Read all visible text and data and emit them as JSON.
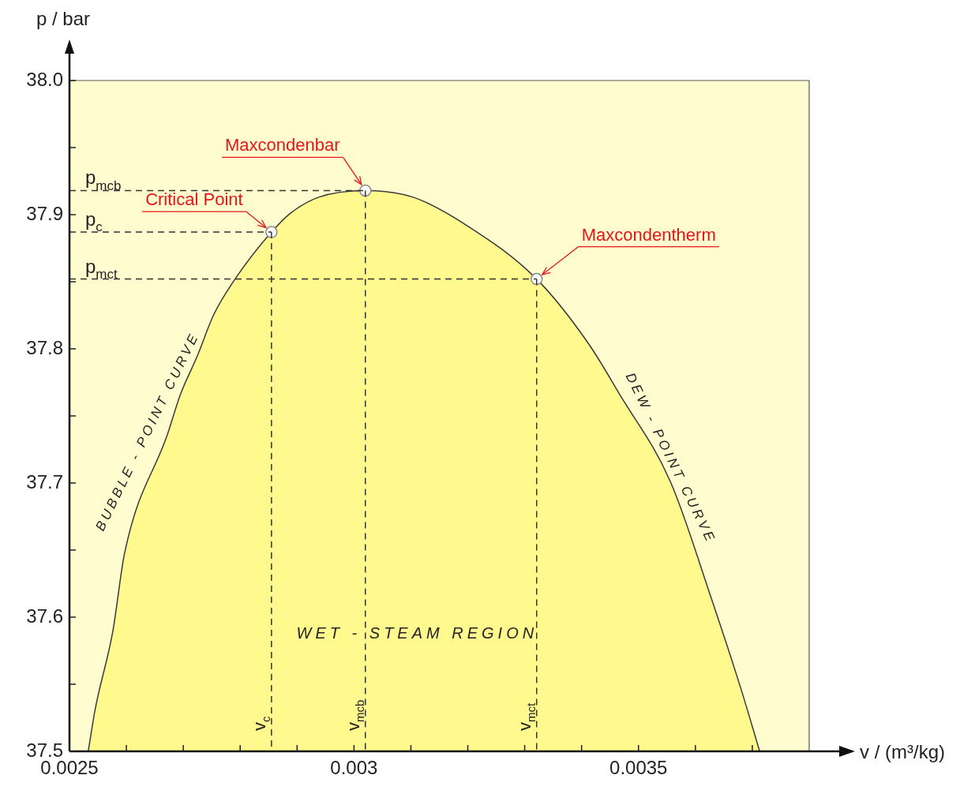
{
  "chart_data": {
    "type": "area",
    "xlabel": "v / (m³/kg)",
    "ylabel": "p / bar",
    "xlim": [
      0.0025,
      0.0038
    ],
    "ylim": [
      37.5,
      38
    ],
    "xticks": [
      0.0025,
      {
        "value": 0.0026,
        "label": null
      },
      {
        "value": 0.0027,
        "label": null
      },
      {
        "value": 0.0028,
        "label": null
      },
      {
        "value": 0.0029,
        "label": null
      },
      0.003,
      {
        "value": 0.0031,
        "label": null
      },
      {
        "value": 0.0032,
        "label": null
      },
      {
        "value": 0.0033,
        "label": null
      },
      {
        "value": 0.0034,
        "label": null
      },
      0.0035,
      {
        "value": 0.0036,
        "label": null
      },
      {
        "value": 0.0037,
        "label": null
      }
    ],
    "yticks": [
      37.5,
      {
        "value": 37.55,
        "label": null
      },
      37.6,
      {
        "value": 37.65,
        "label": null
      },
      37.7,
      {
        "value": 37.75,
        "label": null
      },
      37.8,
      {
        "value": 37.85,
        "label": null
      },
      37.9,
      {
        "value": 37.95,
        "label": null
      },
      {
        "value": 38,
        "label": "38.0"
      }
    ],
    "bands": [
      {
        "axis": "y",
        "from": 37.5,
        "to": 38,
        "color": "#fffdcf"
      }
    ],
    "series": [
      {
        "color": "#fff98e",
        "x": [
          0.002533,
          0.002545,
          0.002576,
          0.002597,
          0.002672,
          0.002695,
          0.002725,
          0.002753,
          0.002791,
          0.002855,
          0.002888,
          0.002938,
          0.00302,
          0.003104,
          0.003198,
          0.003321,
          0.003412,
          0.003467,
          0.003556,
          0.003628,
          0.003679,
          0.003713
        ],
        "values": [
          37.5,
          37.531,
          37.589,
          37.648,
          37.736,
          37.766,
          37.795,
          37.825,
          37.852,
          37.887,
          37.901,
          37.913,
          37.918,
          37.913,
          37.892,
          37.852,
          37.804,
          37.766,
          37.701,
          37.614,
          37.548,
          37.5
        ]
      },
      {
        "type": "scatter",
        "color": "#ffffff",
        "marker": "circle",
        "x": [
          0.002855,
          0.00302,
          0.003321
        ],
        "values": [
          37.887,
          37.918,
          37.852
        ]
      },
      {
        "type": "line",
        "name": "p$_{mcb}$",
        "color": "#333333",
        "line_style": "dashed",
        "x": [
          0.0025,
          0.00302
        ],
        "values": [
          37.918,
          37.918
        ]
      },
      {
        "type": "line",
        "name": "p$_{c}$",
        "color": "#333333",
        "line_style": "dashed",
        "x": [
          0.0025,
          0.002855
        ],
        "values": [
          37.887,
          37.887
        ]
      },
      {
        "type": "line",
        "name": "p$_{mct}$",
        "color": "#333333",
        "line_style": "dashed",
        "x": [
          0.0025,
          0.003321
        ],
        "values": [
          37.852,
          37.852
        ]
      },
      {
        "type": "line",
        "name": "v$_{c}$",
        "color": "#333333",
        "line_style": "dashed",
        "x": [
          0.002855,
          0.002855
        ],
        "values": [
          37.887,
          37.5
        ]
      },
      {
        "type": "line",
        "name": "v$_{mcb}$",
        "color": "#333333",
        "line_style": "dashed",
        "x": [
          0.00302,
          0.00302
        ],
        "values": [
          37.918,
          37.5
        ]
      },
      {
        "type": "line",
        "name": "v$_{mct}$",
        "color": "#333333",
        "line_style": "dashed",
        "x": [
          0.003321,
          0.003321
        ],
        "values": [
          37.852,
          37.5
        ]
      }
    ],
    "annotations": [
      {
        "text": "Maxcondenbar",
        "x": 0.00302,
        "y": 37.918
      },
      {
        "text": "Critical Point",
        "x": 0.002855,
        "y": 37.887
      },
      {
        "text": "Maxcondentherm",
        "x": 0.003321,
        "y": 37.852
      },
      "BUBBLE - POINT CURVE",
      "DEW - POINT CURVE",
      "WET - STEAM REGION"
    ]
  }
}
